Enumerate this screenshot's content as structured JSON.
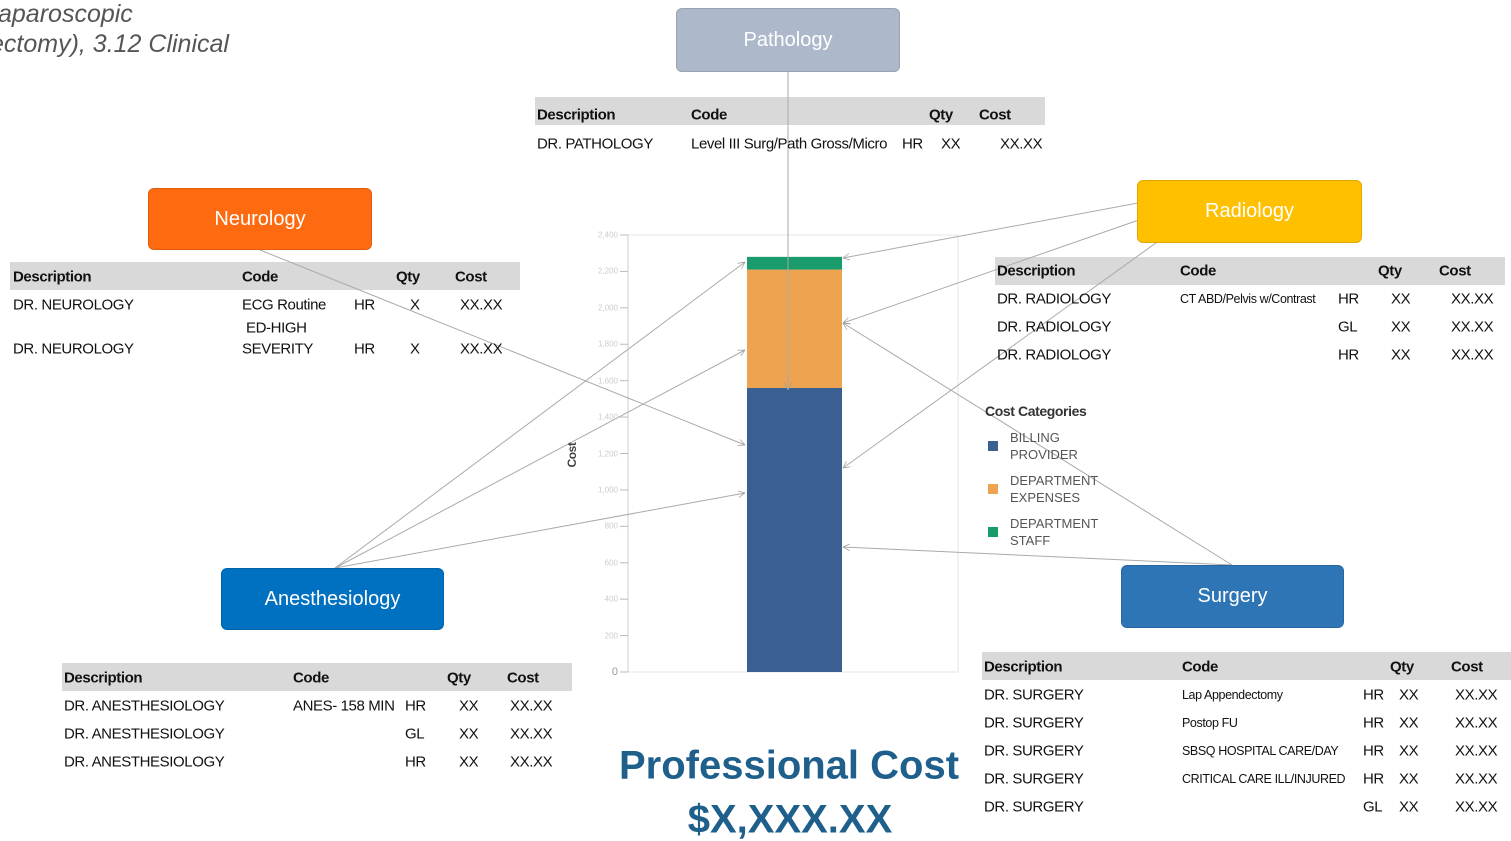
{
  "header_fragment": [
    "aparoscopic",
    "ectomy), 3.12 Clinical"
  ],
  "departments": [
    {
      "name": "Pathology",
      "columns": [
        "Description",
        "Code",
        "Qty",
        "Cost"
      ],
      "rows": [
        {
          "description": "DR. PATHOLOGY",
          "code": "Level III Surg/Path Gross/Micro",
          "unit": "HR",
          "qty": "XX",
          "cost": "XX.XX"
        }
      ]
    },
    {
      "name": "Neurology",
      "columns": [
        "Description",
        "Code",
        "Qty",
        "Cost"
      ],
      "rows": [
        {
          "description": "DR. NEUROLOGY",
          "code": [
            "ECG Routine"
          ],
          "unit": "HR",
          "qty": "X",
          "cost": "XX.XX"
        },
        {
          "description": "DR. NEUROLOGY",
          "code": [
            "ED-HIGH",
            "SEVERITY"
          ],
          "unit": "HR",
          "qty": "X",
          "cost": "XX.XX"
        }
      ]
    },
    {
      "name": "Radiology",
      "columns": [
        "Description",
        "Code",
        "Qty",
        "Cost"
      ],
      "rows": [
        {
          "description": "DR. RADIOLOGY",
          "code": "CT ABD/Pelvis w/Contrast",
          "unit": "HR",
          "qty": "XX",
          "cost": "XX.XX"
        },
        {
          "description": "DR. RADIOLOGY",
          "unit": "GL",
          "qty": "XX",
          "cost": "XX.XX"
        },
        {
          "description": "DR. RADIOLOGY",
          "unit": "HR",
          "qty": "XX",
          "cost": "XX.XX"
        }
      ]
    },
    {
      "name": "Anesthesiology",
      "columns": [
        "Description",
        "Code",
        "Qty",
        "Cost"
      ],
      "rows": [
        {
          "description": "DR. ANESTHESIOLOGY",
          "code": "ANES- 158 MIN",
          "unit": "HR",
          "qty": "XX",
          "cost": "XX.XX"
        },
        {
          "description": "DR. ANESTHESIOLOGY",
          "unit": "GL",
          "qty": "XX",
          "cost": "XX.XX"
        },
        {
          "description": "DR. ANESTHESIOLOGY",
          "unit": "HR",
          "qty": "XX",
          "cost": "XX.XX"
        }
      ]
    },
    {
      "name": "Surgery",
      "columns": [
        "Description",
        "Code",
        "Qty",
        "Cost"
      ],
      "rows": [
        {
          "description": "DR. SURGERY",
          "code": "Lap Appendectomy",
          "unit": "HR",
          "qty": "XX",
          "cost": "XX.XX"
        },
        {
          "description": "DR. SURGERY",
          "code": "Postop FU",
          "unit": "HR",
          "qty": "XX",
          "cost": "XX.XX"
        },
        {
          "description": "DR. SURGERY",
          "code": "SBSQ HOSPITAL CARE/DAY",
          "unit": "HR",
          "qty": "XX",
          "cost": "XX.XX"
        },
        {
          "description": "DR. SURGERY",
          "code": "CRITICAL CARE ILL/INJURED",
          "unit": "HR",
          "qty": "XX",
          "cost": "XX.XX"
        },
        {
          "description": "DR. SURGERY",
          "unit": "GL",
          "qty": "XX",
          "cost": "XX.XX"
        }
      ]
    }
  ],
  "chart_data": {
    "type": "stacked_bar",
    "ylabel": "Cost",
    "legend_title": "Cost Categories",
    "categories": [
      null
    ],
    "series": [
      {
        "name": "BILLING PROVIDER",
        "color": "#3a5f91",
        "values": [
          1560
        ]
      },
      {
        "name": "DEPARTMENT EXPENSES",
        "color": "#eea350",
        "values": [
          650
        ]
      },
      {
        "name": "DEPARTMENT STAFF",
        "color": "#1a9b6c",
        "values": [
          70
        ]
      }
    ],
    "ylim": [
      0,
      2400
    ],
    "yticks": [
      0,
      200,
      400,
      600,
      800,
      {
        "value": 1000,
        "label": "1,000"
      },
      {
        "value": 1200,
        "label": "1,200"
      },
      {
        "value": 1400,
        "label": "1,400"
      },
      {
        "value": 1600,
        "label": "1,600"
      },
      {
        "value": 1800,
        "label": "1,800"
      },
      {
        "value": 2000,
        "label": "2,000"
      },
      {
        "value": 2200,
        "label": "2,200"
      },
      {
        "value": 2400,
        "label": "2,400"
      }
    ]
  },
  "summary": {
    "title": "Professional Cost",
    "amount": "$X,XXX.XX"
  }
}
